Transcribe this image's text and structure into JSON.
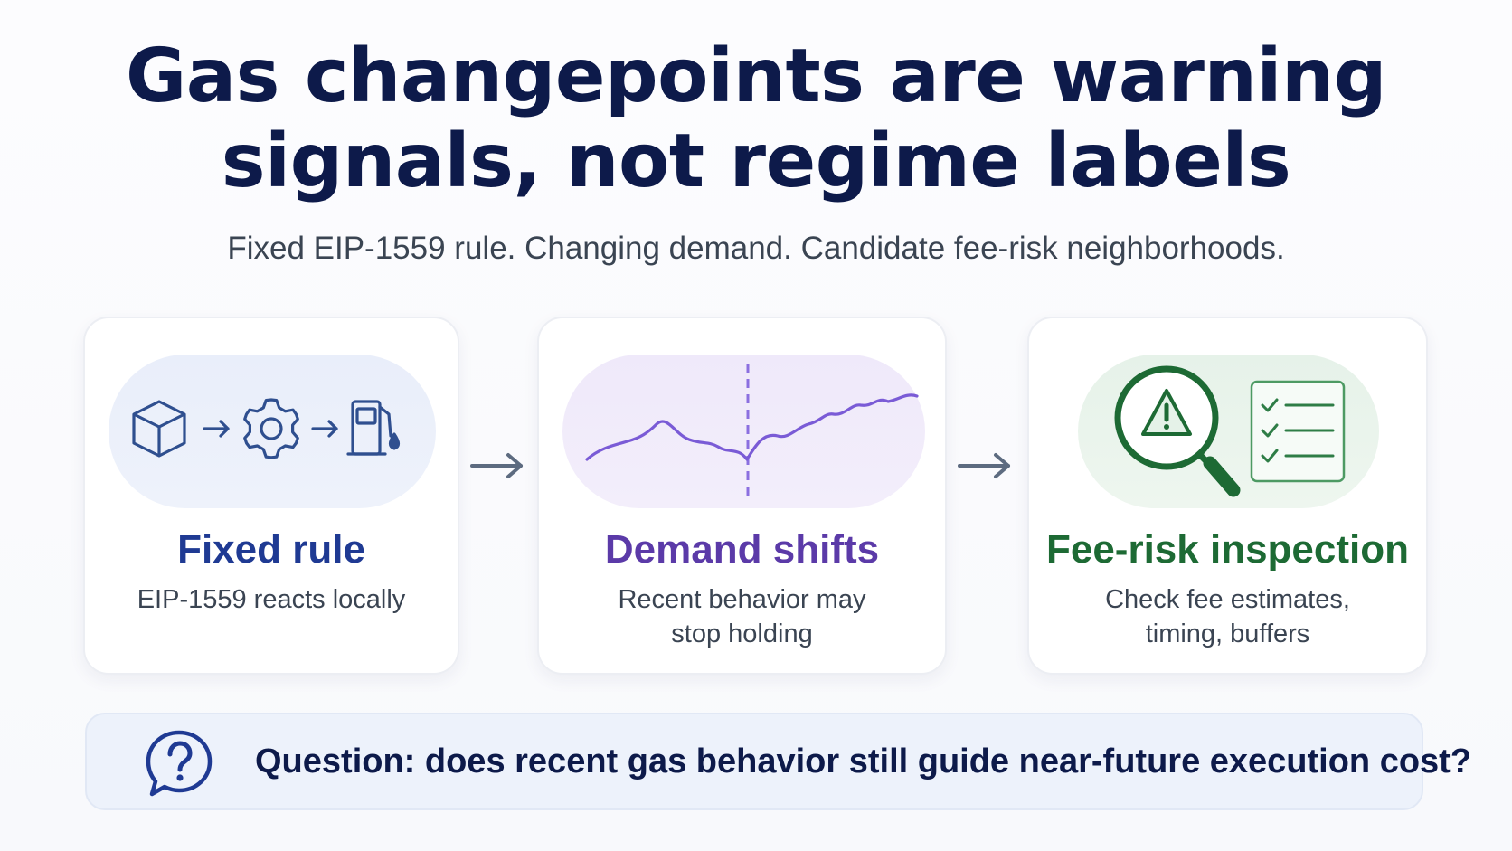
{
  "title": {
    "line1": "Gas changepoints are warning",
    "line2": "signals, not regime labels"
  },
  "subtitle": "Fixed EIP-1559 rule. Changing demand. Candidate fee-risk neighborhoods.",
  "cards": [
    {
      "title": "Fixed rule",
      "description_lines": [
        "EIP-1559 reacts locally"
      ],
      "accent_color": "#1f3a93",
      "icons": [
        "cube-icon",
        "arrow-right-icon",
        "gear-icon",
        "arrow-right-icon",
        "fuel-pump-icon"
      ]
    },
    {
      "title": "Demand shifts",
      "description_lines": [
        "Recent behavior may",
        "stop holding"
      ],
      "accent_color": "#5b3aa8",
      "icons": [
        "line-chart-icon",
        "changepoint-dashed-line"
      ]
    },
    {
      "title": "Fee-risk inspection",
      "description_lines": [
        "Check fee estimates,",
        "timing, buffers"
      ],
      "accent_color": "#1d6a34",
      "icons": [
        "magnifier-warning-icon",
        "checklist-icon"
      ]
    }
  ],
  "flow_icons": [
    "arrow-right-icon",
    "arrow-right-icon"
  ],
  "question": {
    "icon": "question-bubble-icon",
    "text": "Question: does recent gas behavior still guide near-future execution cost?"
  },
  "colors": {
    "title": "#0d1a4a",
    "body_text": "#3a4452",
    "flow_arrow": "#5d6b80",
    "question_bg": "#edf2fb"
  }
}
